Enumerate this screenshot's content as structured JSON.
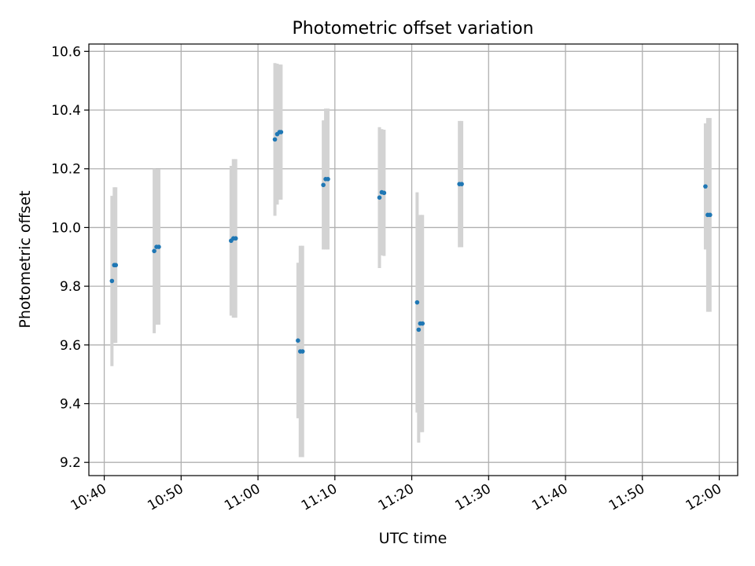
{
  "chart_data": {
    "type": "scatter",
    "title": "Photometric offset variation",
    "xlabel": "UTC time",
    "ylabel": "Photometric offset",
    "x_unit": "UTC time (HH:MM)",
    "xlim": [
      "10:38.0",
      "12:02.4"
    ],
    "ylim": [
      9.155,
      10.625
    ],
    "xticks": [
      "10:40",
      "10:50",
      "11:00",
      "11:10",
      "11:20",
      "11:30",
      "11:40",
      "11:50",
      "12:00"
    ],
    "yticks": [
      "9.2",
      "9.4",
      "9.6",
      "9.8",
      "10.0",
      "10.2",
      "10.4",
      "10.6"
    ],
    "grid": true,
    "series": [
      {
        "marker_color": "#1f77b4",
        "errorbar_color": "#d3d3d3",
        "points": [
          {
            "x": "10:41.0",
            "y": 9.818,
            "yerr": 0.29
          },
          {
            "x": "10:41.3",
            "y": 9.872,
            "yerr": 0.265
          },
          {
            "x": "10:41.5",
            "y": 9.872,
            "yerr": 0.265
          },
          {
            "x": "10:46.5",
            "y": 9.92,
            "yerr": 0.28
          },
          {
            "x": "10:46.8",
            "y": 9.934,
            "yerr": 0.265
          },
          {
            "x": "10:47.1",
            "y": 9.934,
            "yerr": 0.265
          },
          {
            "x": "10:56.5",
            "y": 9.955,
            "yerr": 0.255
          },
          {
            "x": "10:56.8",
            "y": 9.963,
            "yerr": 0.27
          },
          {
            "x": "10:57.1",
            "y": 9.963,
            "yerr": 0.27
          },
          {
            "x": "11:02.2",
            "y": 10.3,
            "yerr": 0.26
          },
          {
            "x": "11:02.5",
            "y": 10.318,
            "yerr": 0.24
          },
          {
            "x": "11:02.8",
            "y": 10.325,
            "yerr": 0.23
          },
          {
            "x": "11:03.0",
            "y": 10.325,
            "yerr": 0.23
          },
          {
            "x": "11:05.2",
            "y": 9.615,
            "yerr": 0.265
          },
          {
            "x": "11:05.5",
            "y": 9.578,
            "yerr": 0.36
          },
          {
            "x": "11:05.8",
            "y": 9.578,
            "yerr": 0.36
          },
          {
            "x": "11:08.5",
            "y": 10.145,
            "yerr": 0.22
          },
          {
            "x": "11:08.8",
            "y": 10.165,
            "yerr": 0.24
          },
          {
            "x": "11:09.1",
            "y": 10.165,
            "yerr": 0.24
          },
          {
            "x": "11:15.8",
            "y": 10.102,
            "yerr": 0.24
          },
          {
            "x": "11:16.1",
            "y": 10.12,
            "yerr": 0.215
          },
          {
            "x": "11:16.4",
            "y": 10.118,
            "yerr": 0.215
          },
          {
            "x": "11:20.7",
            "y": 9.745,
            "yerr": 0.375
          },
          {
            "x": "11:20.9",
            "y": 9.652,
            "yerr": 0.385
          },
          {
            "x": "11:21.1",
            "y": 9.673,
            "yerr": 0.37
          },
          {
            "x": "11:21.4",
            "y": 9.673,
            "yerr": 0.37
          },
          {
            "x": "11:26.2",
            "y": 10.148,
            "yerr": 0.215
          },
          {
            "x": "11:26.5",
            "y": 10.148,
            "yerr": 0.215
          },
          {
            "x": "11:58.2",
            "y": 10.14,
            "yerr": 0.215
          },
          {
            "x": "11:58.5",
            "y": 10.043,
            "yerr": 0.33
          },
          {
            "x": "11:58.8",
            "y": 10.043,
            "yerr": 0.33
          }
        ]
      }
    ]
  }
}
